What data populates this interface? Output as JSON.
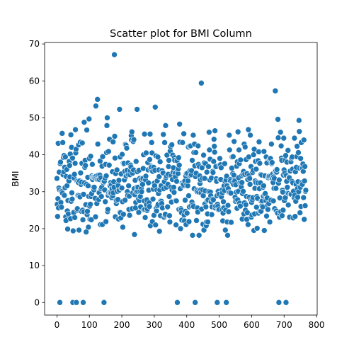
{
  "chart_data": {
    "type": "scatter",
    "title": "Scatter plot for BMI Column",
    "xlabel": "",
    "ylabel": "BMI",
    "xlim": [
      -38,
      802
    ],
    "ylim": [
      -3.4,
      70.4
    ],
    "x_ticks": [
      0,
      100,
      200,
      300,
      400,
      500,
      600,
      700,
      800
    ],
    "y_ticks": [
      0,
      10,
      20,
      30,
      40,
      50,
      60,
      70
    ],
    "grid": false,
    "marker_color": "#1f77b4",
    "x": [
      0,
      1,
      2,
      3,
      4,
      5,
      6,
      7,
      8,
      9,
      10,
      11,
      12,
      13,
      14,
      15,
      16,
      17,
      18,
      19,
      20,
      21,
      22,
      23,
      24,
      25,
      26,
      27,
      28,
      29,
      30,
      31,
      32,
      33,
      34,
      35,
      36,
      37,
      38,
      39,
      40,
      41,
      42,
      43,
      44,
      45,
      46,
      47,
      48,
      49,
      50,
      51,
      52,
      53,
      54,
      55,
      56,
      57,
      58,
      59,
      60,
      61,
      62,
      63,
      64,
      65,
      66,
      67,
      68,
      69,
      70,
      71,
      72,
      73,
      74,
      75,
      76,
      77,
      78,
      79,
      80,
      81,
      82,
      83,
      84,
      85,
      86,
      87,
      88,
      89,
      90,
      91,
      92,
      93,
      94,
      95,
      96,
      97,
      98,
      99,
      100,
      101,
      102,
      103,
      104,
      105,
      106,
      107,
      108,
      109,
      110,
      111,
      112,
      113,
      114,
      115,
      116,
      117,
      118,
      119,
      120,
      121,
      122,
      123,
      124,
      125,
      126,
      127,
      128,
      129,
      130,
      131,
      132,
      133,
      134,
      135,
      136,
      137,
      138,
      139,
      140,
      141,
      142,
      143,
      144,
      145,
      146,
      147,
      148,
      149,
      150,
      151,
      152,
      153,
      154,
      155,
      156,
      157,
      158,
      159,
      160,
      161,
      162,
      163,
      164,
      165,
      166,
      167,
      168,
      169,
      170,
      171,
      172,
      173,
      174,
      175,
      176,
      177,
      178,
      179,
      180,
      181,
      182,
      183,
      184,
      185,
      186,
      187,
      188,
      189,
      190,
      191,
      192,
      193,
      194,
      195,
      196,
      197,
      198,
      199,
      200,
      201,
      202,
      203,
      204,
      205,
      206,
      207,
      208,
      209,
      210,
      211,
      212,
      213,
      214,
      215,
      216,
      217,
      218,
      219,
      220,
      221,
      222,
      223,
      224,
      225,
      226,
      227,
      228,
      229,
      230,
      231,
      232,
      233,
      234,
      235,
      236,
      237,
      238,
      239,
      240,
      241,
      242,
      243,
      244,
      245,
      246,
      247,
      248,
      249,
      250,
      251,
      252,
      253,
      254,
      255,
      256,
      257,
      258,
      259,
      260,
      261,
      262,
      263,
      264,
      265,
      266,
      267,
      268,
      269,
      270,
      271,
      272,
      273,
      274,
      275,
      276,
      277,
      278,
      279,
      280,
      281,
      282,
      283,
      284,
      285,
      286,
      287,
      288,
      289,
      290,
      291,
      292,
      293,
      294,
      295,
      296,
      297,
      298,
      299,
      300,
      301,
      302,
      303,
      304,
      305,
      306,
      307,
      308,
      309,
      310,
      311,
      312,
      313,
      314,
      315,
      316,
      317,
      318,
      319,
      320,
      321,
      322,
      323,
      324,
      325,
      326,
      327,
      328,
      329,
      330,
      331,
      332,
      333,
      334,
      335,
      336,
      337,
      338,
      339,
      340,
      341,
      342,
      343,
      344,
      345,
      346,
      347,
      348,
      349,
      350,
      351,
      352,
      353,
      354,
      355,
      356,
      357,
      358,
      359,
      360,
      361,
      362,
      363,
      364,
      365,
      366,
      367,
      368,
      369,
      370,
      371,
      372,
      373,
      374,
      375,
      376,
      377,
      378,
      379,
      380,
      381,
      382,
      383,
      384,
      385,
      386,
      387,
      388,
      389,
      390,
      391,
      392,
      393,
      394,
      395,
      396,
      397,
      398,
      399,
      400,
      401,
      402,
      403,
      404,
      405,
      406,
      407,
      408,
      409,
      410,
      411,
      412,
      413,
      414,
      415,
      416,
      417,
      418,
      419,
      420,
      421,
      422,
      423,
      424,
      425,
      426,
      427,
      428,
      429,
      430,
      431,
      432,
      433,
      434,
      435,
      436,
      437,
      438,
      439,
      440,
      441,
      442,
      443,
      444,
      445,
      446,
      447,
      448,
      449,
      450,
      451,
      452,
      453,
      454,
      455,
      456,
      457,
      458,
      459,
      460,
      461,
      462,
      463,
      464,
      465,
      466,
      467,
      468,
      469,
      470,
      471,
      472,
      473,
      474,
      475,
      476,
      477,
      478,
      479,
      480,
      481,
      482,
      483,
      484,
      485,
      486,
      487,
      488,
      489,
      490,
      491,
      492,
      493,
      494,
      495,
      496,
      497,
      498,
      499,
      500,
      501,
      502,
      503,
      504,
      505,
      506,
      507,
      508,
      509,
      510,
      511,
      512,
      513,
      514,
      515,
      516,
      517,
      518,
      519,
      520,
      521,
      522,
      523,
      524,
      525,
      526,
      527,
      528,
      529,
      530,
      531,
      532,
      533,
      534,
      535,
      536,
      537,
      538,
      539,
      540,
      541,
      542,
      543,
      544,
      545,
      546,
      547,
      548,
      549,
      550,
      551,
      552,
      553,
      554,
      555,
      556,
      557,
      558,
      559,
      560,
      561,
      562,
      563,
      564,
      565,
      566,
      567,
      568,
      569,
      570,
      571,
      572,
      573,
      574,
      575,
      576,
      577,
      578,
      579,
      580,
      581,
      582,
      583,
      584,
      585,
      586,
      587,
      588,
      589,
      590,
      591,
      592,
      593,
      594,
      595,
      596,
      597,
      598,
      599,
      600,
      601,
      602,
      603,
      604,
      605,
      606,
      607,
      608,
      609,
      610,
      611,
      612,
      613,
      614,
      615,
      616,
      617,
      618,
      619,
      620,
      621,
      622,
      623,
      624,
      625,
      626,
      627,
      628,
      629,
      630,
      631,
      632,
      633,
      634,
      635,
      636,
      637,
      638,
      639,
      640,
      641,
      642,
      643,
      644,
      645,
      646,
      647,
      648,
      649,
      650,
      651,
      652,
      653,
      654,
      655,
      656,
      657,
      658,
      659,
      660,
      661,
      662,
      663,
      664,
      665,
      666,
      667,
      668,
      669,
      670,
      671,
      672,
      673,
      674,
      675,
      676,
      677,
      678,
      679,
      680,
      681,
      682,
      683,
      684,
      685,
      686,
      687,
      688,
      689,
      690,
      691,
      692,
      693,
      694,
      695,
      696,
      697,
      698,
      699,
      700,
      701,
      702,
      703,
      704,
      705,
      706,
      707,
      708,
      709,
      710,
      711,
      712,
      713,
      714,
      715,
      716,
      717,
      718,
      719,
      720,
      721,
      722,
      723,
      724,
      725,
      726,
      727,
      728,
      729,
      730,
      731,
      732,
      733,
      734,
      735,
      736,
      737,
      738,
      739,
      740,
      741,
      742,
      743,
      744,
      745,
      746,
      747,
      748,
      749,
      750,
      751,
      752,
      753,
      754,
      755,
      756,
      757,
      758,
      759,
      760,
      761,
      762,
      763,
      764,
      765,
      766,
      767
    ],
    "y": [
      33.6,
      26.6,
      23.3,
      28.1,
      43.1,
      25.6,
      31,
      35.3,
      30.5,
      0,
      37.6,
      38,
      27.1,
      30.1,
      25.8,
      30,
      45.8,
      29.6,
      43.3,
      34.6,
      39.3,
      35.4,
      39.8,
      29,
      36.6,
      31.1,
      39.4,
      23.2,
      22.2,
      34.1,
      36,
      31.6,
      24.8,
      19.9,
      27.6,
      24,
      33.2,
      32.9,
      38.2,
      37.1,
      34,
      40.2,
      22.7,
      45.4,
      27.4,
      42,
      29.7,
      28,
      39.1,
      0,
      19.4,
      24.2,
      24.4,
      33.7,
      34.7,
      23,
      37.7,
      46.8,
      40.5,
      41.5,
      0,
      32.9,
      25,
      25.4,
      32.8,
      29,
      32.5,
      42.7,
      19.6,
      28.9,
      32.9,
      28.6,
      43.4,
      35.1,
      32,
      24.7,
      32.6,
      37.7,
      43.2,
      25,
      22.4,
      0,
      29.3,
      24.6,
      48.8,
      32.4,
      36.6,
      38.5,
      37.1,
      26.5,
      19.1,
      32,
      46.7,
      23.8,
      24.7,
      33.9,
      31.6,
      20.4,
      28.7,
      49.7,
      39,
      26.1,
      22.5,
      26.6,
      39.6,
      28.7,
      22.4,
      29.5,
      34.3,
      37.4,
      33.3,
      34,
      31.2,
      34,
      30.5,
      31.2,
      34,
      33.7,
      28.2,
      23.2,
      53.2,
      34.2,
      33.6,
      26.8,
      33.3,
      55,
      42.9,
      33.3,
      34.5,
      27.9,
      29.7,
      33.3,
      34.5,
      38.3,
      21.1,
      33.8,
      30.8,
      28.7,
      31.2,
      36.9,
      21.1,
      39.5,
      32.5,
      32.4,
      32.8,
      0,
      32.8,
      30.5,
      33.7,
      27.3,
      37.4,
      21.9,
      34.3,
      40.6,
      47.9,
      50,
      24.6,
      25.2,
      29,
      40.9,
      29.7,
      37.2,
      44.2,
      29.7,
      31.6,
      29.9,
      32.5,
      29.6,
      31.9,
      28.4,
      30.8,
      35.4,
      28.9,
      43.5,
      29.7,
      32.7,
      31.2,
      67.1,
      45,
      39.1,
      23.2,
      34.9,
      27.7,
      26.8,
      27.6,
      35.9,
      30.1,
      32,
      27.9,
      31.6,
      22.6,
      33.1,
      30.4,
      52.3,
      24.4,
      39.4,
      24.3,
      22.9,
      34.8,
      30.9,
      31,
      40.1,
      27.3,
      20.4,
      37.7,
      23.9,
      37.5,
      37.7,
      33.2,
      35.5,
      27.7,
      42.8,
      34.2,
      42.6,
      34.2,
      41.8,
      35.8,
      30,
      29,
      37.8,
      34.6,
      31.6,
      25.2,
      28.8,
      23.6,
      34.6,
      35.7,
      37.2,
      36.7,
      45.2,
      44,
      46.2,
      25.4,
      35,
      29.7,
      43.6,
      35.9,
      44.1,
      30.8,
      18.4,
      29.2,
      33.1,
      25.6,
      27.1,
      38.2,
      30,
      31.2,
      52.3,
      35.4,
      30.1,
      31.2,
      28,
      24.4,
      35.8,
      27.6,
      33.6,
      30.1,
      28.7,
      25.9,
      33.3,
      30.9,
      30,
      32.1,
      32.4,
      32,
      33.6,
      36.3,
      40,
      25.1,
      27.5,
      45.6,
      25.2,
      23,
      33.2,
      34.2,
      40.5,
      26.5,
      27.8,
      24.9,
      25.3,
      37.9,
      35.9,
      32.4,
      30.4,
      27,
      26,
      38.7,
      45.6,
      20.8,
      36.1,
      36.9,
      36.6,
      43.3,
      40.5,
      21.9,
      35.5,
      28,
      30.7,
      36.6,
      23.6,
      32.3,
      31.6,
      35.8,
      52.9,
      21,
      39.7,
      25.5,
      24.8,
      30.5,
      32.9,
      26.2,
      39.4,
      26.6,
      29.5,
      35.9,
      34.1,
      19.3,
      30.5,
      38.1,
      23.5,
      27.5,
      31.6,
      27.4,
      26.8,
      35.7,
      25.6,
      35.1,
      35.1,
      45.5,
      30.8,
      23.1,
      32.7,
      43.3,
      23.6,
      23.9,
      47.9,
      33.8,
      31.2,
      34.2,
      39.9,
      25.9,
      25.9,
      32,
      34.7,
      36.8,
      38.5,
      28.7,
      23.5,
      21.8,
      41,
      42.2,
      31.2,
      34.4,
      27.2,
      42.7,
      30.4,
      33.3,
      39.9,
      35.3,
      36.5,
      31.2,
      29.8,
      39.2,
      38.5,
      34.9,
      34,
      27.6,
      21,
      27.5,
      32.8,
      38.4,
      0,
      35.8,
      34.9,
      36.2,
      39.2,
      25.2,
      37.2,
      48.3,
      43.4,
      30.8,
      20,
      25.4,
      25.1,
      24.3,
      22.3,
      32.3,
      43.3,
      32,
      31.6,
      32,
      45.7,
      23.7,
      22.1,
      32.9,
      27.7,
      24.7,
      34.3,
      21.1,
      34.9,
      32,
      24.2,
      35,
      31.6,
      32.9,
      42.1,
      28.9,
      21.9,
      25.9,
      42.4,
      35.7,
      34.4,
      42.4,
      26.2,
      34.6,
      35.7,
      27.2,
      38.5,
      18.2,
      26.4,
      45.3,
      26,
      40.6,
      30.8,
      42.9,
      37,
      0,
      34.1,
      40.6,
      35,
      22.2,
      30.4,
      30,
      25.6,
      24.5,
      42.4,
      37.4,
      29.9,
      18.2,
      36.8,
      34.3,
      32.2,
      33.2,
      30.5,
      29.7,
      59.4,
      25.3,
      36.5,
      33.6,
      30.5,
      21.2,
      28.9,
      39.9,
      19.6,
      37.8,
      33.6,
      26.7,
      30.2,
      37.6,
      25.9,
      20.8,
      21.8,
      35.3,
      27.6,
      24,
      21.8,
      27.8,
      36.8,
      30,
      46.1,
      41.3,
      33.2,
      38.8,
      29.9,
      28.9,
      27.3,
      33.7,
      23.8,
      25.9,
      28,
      35.5,
      35.2,
      27.8,
      38.2,
      44.2,
      42.3,
      40.7,
      46.5,
      25.6,
      26.1,
      36.8,
      33.5,
      32.8,
      28.9,
      0,
      26.6,
      26,
      30.1,
      25.1,
      29.3,
      25.2,
      37.2,
      39,
      33.3,
      37.3,
      33.3,
      36.5,
      28.6,
      30.4,
      25,
      29.7,
      22.1,
      24.2,
      27.3,
      25.6,
      31.6,
      30.3,
      37.6,
      32.8,
      19.6,
      25,
      33.2,
      0,
      34.2,
      31.6,
      21.8,
      18.2,
      26.3,
      30.8,
      24.6,
      29.8,
      45.3,
      41.3,
      29.8,
      33.3,
      32.9,
      29.6,
      21.7,
      36.3,
      36.4,
      39.4,
      32.4,
      34.9,
      39.5,
      32,
      34.5,
      43.6,
      33.1,
      32.8,
      28.5,
      27.4,
      31.9,
      27.8,
      29.9,
      36.9,
      25.5,
      38.1,
      27.8,
      46.2,
      30.1,
      33.8,
      41.3,
      37.6,
      26.9,
      32.4,
      26.1,
      38.6,
      32,
      31.3,
      34.3,
      32.5,
      22.6,
      29.5,
      34.7,
      30.1,
      35.5,
      24,
      42.9,
      27,
      34.7,
      42.1,
      25,
      26.5,
      38.7,
      28.7,
      22.5,
      34.9,
      24.3,
      33.3,
      21.1,
      46.8,
      39.4,
      34.4,
      28.5,
      33.6,
      32,
      45.3,
      27.8,
      36.8,
      23.1,
      27.1,
      23.7,
      27.8,
      35.2,
      28.4,
      35.8,
      40,
      19.5,
      41.5,
      24,
      30.9,
      32.9,
      38.2,
      32.5,
      36.1,
      25.8,
      28.7,
      20.1,
      28.2,
      32.4,
      38.4,
      24.2,
      40.8,
      43.5,
      30.8,
      37.7,
      24.7,
      32.4,
      34.6,
      24.7,
      27.4,
      34.5,
      26.2,
      27.5,
      25.9,
      31.2,
      28.8,
      31.6,
      40.9,
      19.5,
      29.3,
      34.3,
      29.5,
      28,
      27.6,
      39.4,
      23.4,
      37.8,
      28.3,
      26.4,
      25.2,
      33.8,
      34.1,
      26.8,
      34.2,
      38.7,
      21.8,
      38.9,
      39,
      34.2,
      27.7,
      42.9,
      37.6,
      37.9,
      33.7,
      34.8,
      32.5,
      27.5,
      34,
      30.9,
      33.6,
      25.4,
      35.5,
      57.3,
      35.6,
      30.9,
      24.8,
      35.3,
      36,
      24.2,
      24.2,
      49.6,
      44.6,
      32.3,
      0,
      33.2,
      23.1,
      28.3,
      24.1,
      46.1,
      24.6,
      42.4,
      39.1,
      38.5,
      23.5,
      30.4,
      29.9,
      25,
      34.5,
      44.5,
      35.9,
      27.6,
      35,
      38.5,
      28.4,
      39.8,
      0,
      34.4,
      32.8,
      38,
      31.2,
      29.6,
      41.2,
      26.4,
      29.5,
      33.9,
      33.8,
      23.1,
      35.5,
      35.6,
      29.3,
      38.1,
      29.3,
      39.1,
      32.8,
      39.4,
      36.1,
      32.4,
      22.9,
      30.1,
      28.4,
      28.4,
      44.5,
      29,
      23.3,
      35.4,
      27.4,
      32,
      36.6,
      39.5,
      42.3,
      30.8,
      28.5,
      32.7,
      40.6,
      30,
      49.3,
      46.3,
      36.4,
      24.3,
      31.2,
      39,
      26,
      43.3,
      32.4,
      36.5,
      32,
      36.3,
      37.5,
      35.5,
      28.4,
      44,
      22.5,
      32.9,
      36.8,
      26.2,
      30.1,
      30.4
    ]
  }
}
